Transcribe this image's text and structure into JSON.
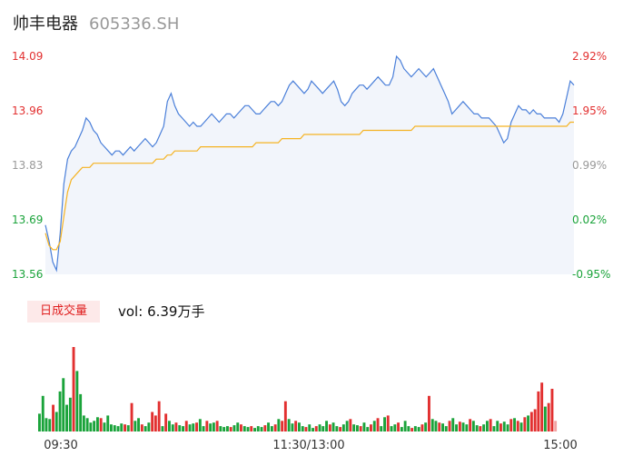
{
  "header": {
    "name": "帅丰电器",
    "code": "605336.SH"
  },
  "volume_panel": {
    "badge": "日成交量",
    "vol_prefix": "vol:",
    "vol_value": "6.39万手"
  },
  "colors": {
    "price_line": "#4a7fd9",
    "price_fill": "#f2f5fb",
    "avg_line": "#f5b323",
    "up": "#e23030",
    "down": "#1aa33a",
    "neutral": "#999999"
  },
  "chart_data": [
    {
      "type": "line",
      "title": "",
      "xlabel": "",
      "ylabel": "",
      "ylim": [
        13.56,
        14.09
      ],
      "x_ticks": [
        "09:30",
        "11:30/13:00",
        "15:00"
      ],
      "y_ticks_left": [
        "14.09",
        "13.96",
        "13.83",
        "13.69",
        "13.56"
      ],
      "y_ticks_right": [
        "2.92%",
        "1.95%",
        "0.99%",
        "0.02%",
        "-0.95%"
      ],
      "grid": false,
      "series": [
        {
          "role": "price",
          "values": [
            13.68,
            13.64,
            13.59,
            13.57,
            13.66,
            13.78,
            13.84,
            13.86,
            13.87,
            13.89,
            13.91,
            13.94,
            13.93,
            13.91,
            13.9,
            13.88,
            13.87,
            13.86,
            13.85,
            13.86,
            13.86,
            13.85,
            13.86,
            13.87,
            13.86,
            13.87,
            13.88,
            13.89,
            13.88,
            13.87,
            13.88,
            13.9,
            13.92,
            13.98,
            14.0,
            13.97,
            13.95,
            13.94,
            13.93,
            13.92,
            13.93,
            13.92,
            13.92,
            13.93,
            13.94,
            13.95,
            13.94,
            13.93,
            13.94,
            13.95,
            13.95,
            13.94,
            13.95,
            13.96,
            13.97,
            13.97,
            13.96,
            13.95,
            13.95,
            13.96,
            13.97,
            13.98,
            13.98,
            13.97,
            13.98,
            14.0,
            14.02,
            14.03,
            14.02,
            14.01,
            14.0,
            14.01,
            14.03,
            14.02,
            14.01,
            14.0,
            14.01,
            14.02,
            14.03,
            14.01,
            13.98,
            13.97,
            13.98,
            14.0,
            14.01,
            14.02,
            14.02,
            14.01,
            14.02,
            14.03,
            14.04,
            14.03,
            14.02,
            14.02,
            14.04,
            14.09,
            14.08,
            14.06,
            14.05,
            14.04,
            14.05,
            14.06,
            14.05,
            14.04,
            14.05,
            14.06,
            14.04,
            14.02,
            14.0,
            13.98,
            13.95,
            13.96,
            13.97,
            13.98,
            13.97,
            13.96,
            13.95,
            13.95,
            13.94,
            13.94,
            13.94,
            13.93,
            13.92,
            13.9,
            13.88,
            13.89,
            13.93,
            13.95,
            13.97,
            13.96,
            13.96,
            13.95,
            13.96,
            13.95,
            13.95,
            13.94,
            13.94,
            13.94,
            13.94,
            13.93,
            13.95,
            13.99,
            14.03,
            14.02
          ]
        },
        {
          "role": "average",
          "values": [
            13.66,
            13.63,
            13.62,
            13.62,
            13.64,
            13.7,
            13.76,
            13.79,
            13.8,
            13.81,
            13.82,
            13.82,
            13.82,
            13.83,
            13.83,
            13.83,
            13.83,
            13.83,
            13.83,
            13.83,
            13.83,
            13.83,
            13.83,
            13.83,
            13.83,
            13.83,
            13.83,
            13.83,
            13.83,
            13.83,
            13.84,
            13.84,
            13.84,
            13.85,
            13.85,
            13.86,
            13.86,
            13.86,
            13.86,
            13.86,
            13.86,
            13.86,
            13.87,
            13.87,
            13.87,
            13.87,
            13.87,
            13.87,
            13.87,
            13.87,
            13.87,
            13.87,
            13.87,
            13.87,
            13.87,
            13.87,
            13.87,
            13.88,
            13.88,
            13.88,
            13.88,
            13.88,
            13.88,
            13.88,
            13.89,
            13.89,
            13.89,
            13.89,
            13.89,
            13.89,
            13.9,
            13.9,
            13.9,
            13.9,
            13.9,
            13.9,
            13.9,
            13.9,
            13.9,
            13.9,
            13.9,
            13.9,
            13.9,
            13.9,
            13.9,
            13.9,
            13.91,
            13.91,
            13.91,
            13.91,
            13.91,
            13.91,
            13.91,
            13.91,
            13.91,
            13.91,
            13.91,
            13.91,
            13.91,
            13.91,
            13.92,
            13.92,
            13.92,
            13.92,
            13.92,
            13.92,
            13.92,
            13.92,
            13.92,
            13.92,
            13.92,
            13.92,
            13.92,
            13.92,
            13.92,
            13.92,
            13.92,
            13.92,
            13.92,
            13.92,
            13.92,
            13.92,
            13.92,
            13.92,
            13.92,
            13.92,
            13.92,
            13.92,
            13.92,
            13.92,
            13.92,
            13.92,
            13.92,
            13.92,
            13.92,
            13.92,
            13.92,
            13.92,
            13.92,
            13.92,
            13.92,
            13.92,
            13.93,
            13.93
          ]
        }
      ]
    },
    {
      "type": "bar",
      "title": "",
      "series": [
        {
          "role": "volume",
          "values": [
            20,
            40,
            15,
            14,
            30,
            22,
            45,
            60,
            30,
            38,
            95,
            68,
            42,
            18,
            15,
            10,
            12,
            16,
            15,
            10,
            18,
            8,
            7,
            6,
            9,
            8,
            7,
            32,
            12,
            15,
            8,
            6,
            10,
            22,
            18,
            34,
            6,
            20,
            12,
            8,
            10,
            7,
            6,
            12,
            8,
            9,
            10,
            14,
            6,
            12,
            9,
            10,
            12,
            6,
            5,
            6,
            5,
            7,
            10,
            8,
            6,
            5,
            6,
            4,
            6,
            5,
            7,
            10,
            6,
            8,
            14,
            12,
            34,
            14,
            9,
            12,
            10,
            6,
            5,
            8,
            4,
            6,
            8,
            6,
            12,
            8,
            10,
            6,
            5,
            8,
            12,
            14,
            8,
            7,
            6,
            10,
            5,
            8,
            12,
            15,
            6,
            16,
            18,
            6,
            8,
            10,
            5,
            12,
            6,
            4,
            6,
            5,
            8,
            10,
            40,
            14,
            12,
            10,
            9,
            6,
            12,
            15,
            8,
            11,
            10,
            8,
            14,
            12,
            7,
            6,
            8,
            12,
            14,
            6,
            12,
            9,
            11,
            8,
            14,
            15,
            12,
            10,
            16,
            18,
            22,
            25,
            45,
            55,
            28,
            32,
            48,
            12
          ],
          "up": [
            false,
            false,
            false,
            false,
            true,
            false,
            false,
            false,
            false,
            false,
            true,
            false,
            false,
            false,
            false,
            false,
            false,
            false,
            true,
            false,
            false,
            false,
            false,
            false,
            false,
            true,
            false,
            true,
            false,
            false,
            true,
            false,
            false,
            true,
            true,
            true,
            false,
            true,
            false,
            false,
            true,
            false,
            false,
            true,
            false,
            false,
            true,
            false,
            false,
            true,
            false,
            false,
            true,
            false,
            false,
            false,
            true,
            false,
            false,
            true,
            false,
            false,
            true,
            false,
            false,
            false,
            true,
            false,
            false,
            true,
            false,
            true,
            true,
            false,
            false,
            true,
            false,
            false,
            true,
            false,
            false,
            true,
            false,
            false,
            false,
            true,
            false,
            false,
            true,
            false,
            false,
            true,
            false,
            false,
            true,
            false,
            false,
            true,
            false,
            true,
            false,
            false,
            true,
            false,
            false,
            true,
            false,
            false,
            false,
            true,
            false,
            false,
            true,
            false,
            true,
            false,
            false,
            true,
            false,
            false,
            true,
            false,
            false,
            true,
            false,
            false,
            true,
            false,
            false,
            true,
            false,
            false,
            true,
            false,
            false,
            true,
            false,
            false,
            true,
            false,
            true,
            false,
            true,
            false,
            true,
            true,
            true,
            true,
            false,
            true,
            true,
            true
          ]
        }
      ]
    }
  ]
}
